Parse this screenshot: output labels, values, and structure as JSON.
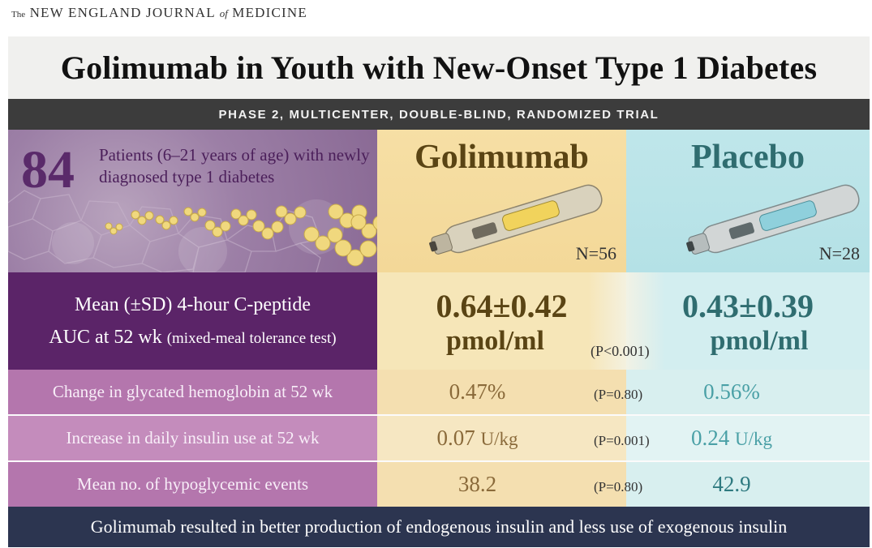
{
  "journal": {
    "the": "The",
    "name": "NEW ENGLAND JOURNAL",
    "of": "of",
    "medicine": "MEDICINE"
  },
  "title": "Golimumab in Youth with New-Onset Type 1 Diabetes",
  "subtitle": "PHASE 2, MULTICENTER, DOUBLE-BLIND, RANDOMIZED TRIAL",
  "population": {
    "count": "84",
    "description": "Patients (6–21 years of age) with newly diagnosed type 1 diabetes"
  },
  "arms": [
    {
      "name": "Golimumab",
      "n": "N=56",
      "color": "#f3d898"
    },
    {
      "name": "Placebo",
      "n": "N=28",
      "color": "#b4e1e6"
    }
  ],
  "primary": {
    "label_line1": "Mean (±SD) 4-hour C-peptide",
    "label_line2": "AUC at 52 wk",
    "label_note": "(mixed-meal tolerance test)",
    "golimumab_value": "0.64±0.42",
    "golimumab_unit": "pmol/ml",
    "placebo_value": "0.43±0.39",
    "placebo_unit": "pmol/ml",
    "p_value": "(P<0.001)"
  },
  "secondary": [
    {
      "label": "Change in glycated hemoglobin at 52 wk",
      "golimumab": "0.47%",
      "golimumab_unit": "",
      "placebo": "0.56%",
      "placebo_unit": "",
      "p_value": "(P=0.80)"
    },
    {
      "label": "Increase in daily insulin use at 52 wk",
      "golimumab": "0.07",
      "golimumab_unit": "U/kg",
      "placebo": "0.24",
      "placebo_unit": "U/kg",
      "p_value": "(P=0.001)"
    },
    {
      "label": "Mean no. of hypoglycemic events",
      "golimumab": "38.2",
      "golimumab_unit": "",
      "placebo": "42.9",
      "placebo_unit": "",
      "p_value": "(P=0.80)"
    }
  ],
  "conclusion": "Golimumab resulted in better production of endogenous insulin and less use of exogenous insulin",
  "colors": {
    "purple_dark": "#5b2468",
    "purple_light": "#b476ad",
    "gold": "#f3d898",
    "teal": "#b4e1e6",
    "navy": "#2c3550"
  },
  "icons": [
    "pen-injector-gold-icon",
    "pen-injector-blue-icon",
    "antibody-cluster-illustration"
  ]
}
